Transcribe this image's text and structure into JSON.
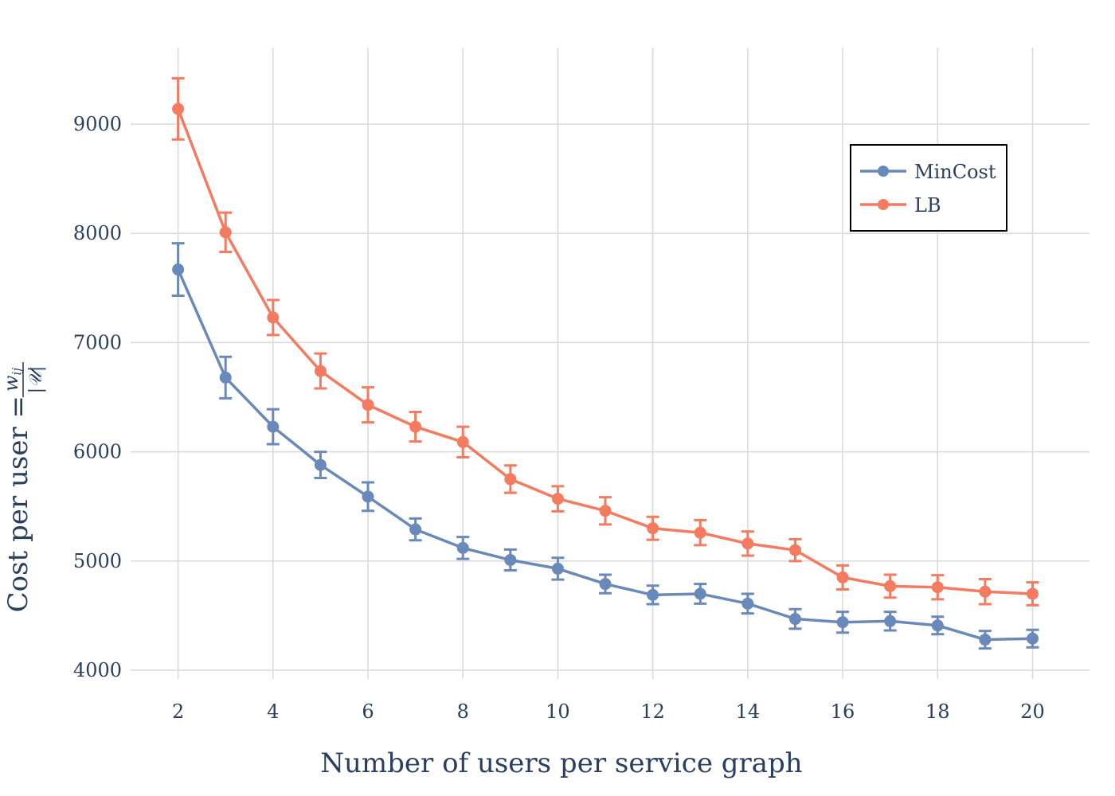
{
  "chart_data": {
    "type": "line",
    "title": "",
    "xlabel": "Number of users per service graph",
    "ylabel_prefix": "Cost per user = ",
    "ylabel_fraction": {
      "numerator": "w",
      "numerator_sub": "ij",
      "denominator": "|𝒰|"
    },
    "xlim": [
      1,
      21.2
    ],
    "ylim": [
      3920,
      9700
    ],
    "x_ticks": [
      2,
      4,
      6,
      8,
      10,
      12,
      14,
      16,
      18,
      20
    ],
    "y_ticks": [
      4000,
      5000,
      6000,
      7000,
      8000,
      9000
    ],
    "grid": true,
    "legend_position": "top-right",
    "x": [
      2,
      3,
      4,
      5,
      6,
      7,
      8,
      9,
      10,
      11,
      12,
      13,
      14,
      15,
      16,
      17,
      18,
      19,
      20
    ],
    "series": [
      {
        "name": "MinCost",
        "color": "#6a89bb",
        "values": [
          7670,
          6680,
          6230,
          5880,
          5590,
          5290,
          5120,
          5010,
          4930,
          4790,
          4690,
          4700,
          4610,
          4470,
          4440,
          4450,
          4410,
          4280,
          4290
        ],
        "errors": [
          240,
          190,
          160,
          120,
          130,
          100,
          100,
          95,
          100,
          85,
          85,
          90,
          90,
          90,
          95,
          85,
          80,
          80,
          80
        ]
      },
      {
        "name": "LB",
        "color": "#f47b5f",
        "values": [
          9140,
          8010,
          7230,
          6740,
          6430,
          6230,
          6090,
          5750,
          5570,
          5460,
          5300,
          5260,
          5160,
          5100,
          4850,
          4770,
          4760,
          4720,
          4700
        ],
        "errors": [
          280,
          180,
          160,
          160,
          160,
          135,
          140,
          125,
          115,
          125,
          105,
          115,
          110,
          100,
          110,
          105,
          110,
          115,
          105
        ]
      }
    ]
  }
}
